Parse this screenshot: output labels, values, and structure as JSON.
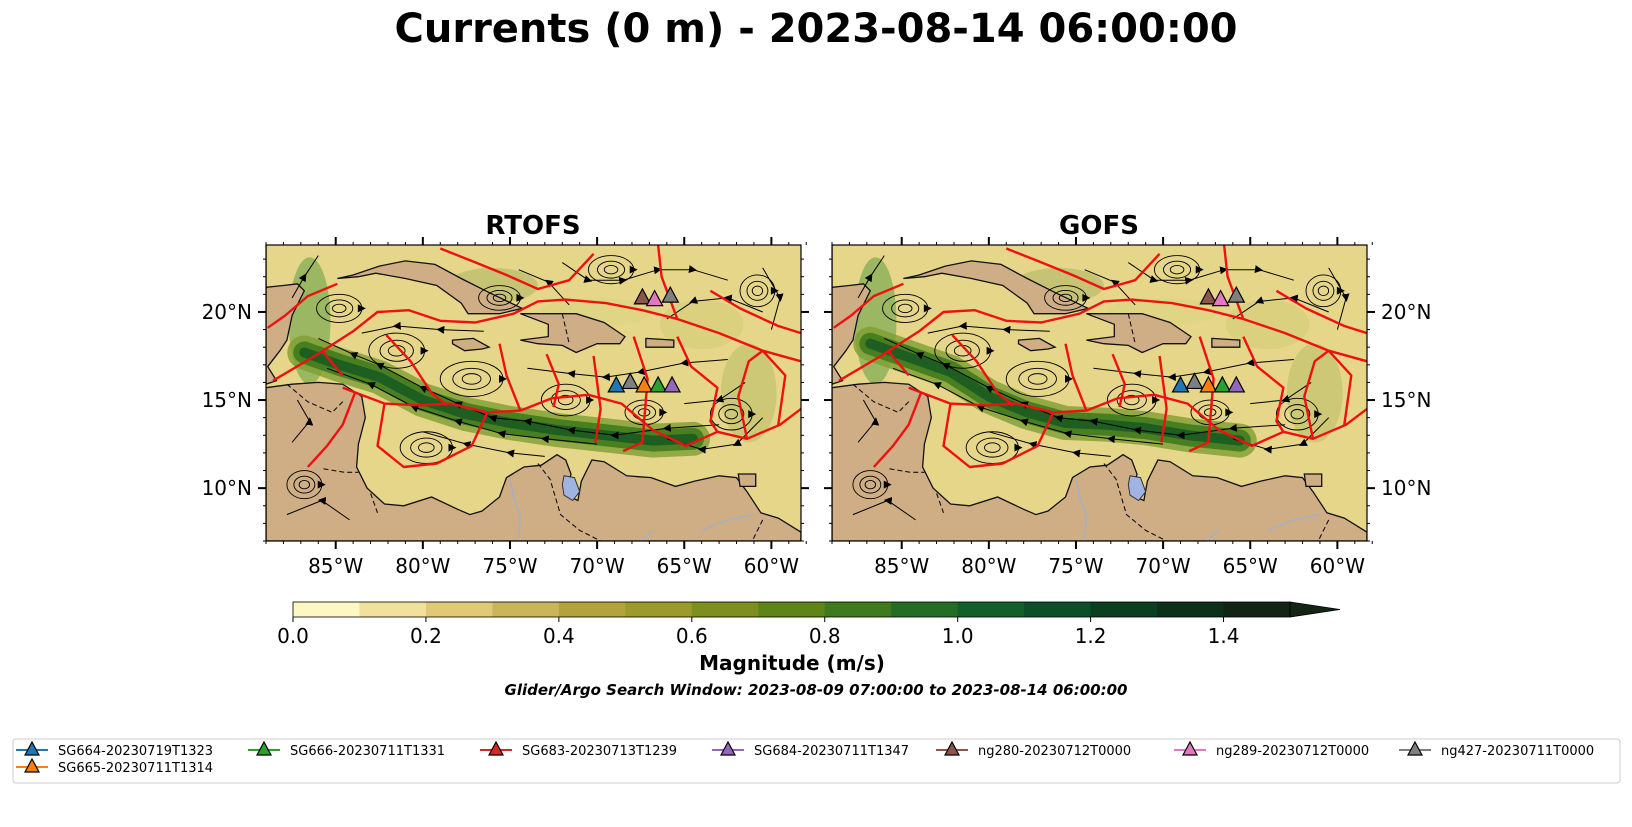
{
  "figure": {
    "title": "Currents (0 m) - 2023-08-14 06:00:00",
    "search_window": "Glider/Argo Search Window: 2023-08-09 07:00:00 to 2023-08-14 06:00:00"
  },
  "panels": [
    {
      "title": "RTOFS"
    },
    {
      "title": "GOFS"
    }
  ],
  "axes": {
    "lon_ticks": [
      "85°W",
      "80°W",
      "75°W",
      "70°W",
      "65°W",
      "60°W"
    ],
    "lon_values": [
      -85,
      -80,
      -75,
      -70,
      -65,
      -60
    ],
    "lat_ticks": [
      "20°N",
      "15°N",
      "10°N"
    ],
    "lat_values": [
      20,
      15,
      10
    ],
    "lon_range": [
      -89,
      -58.3
    ],
    "lat_range": [
      7,
      23.8
    ]
  },
  "colorbar": {
    "label": "Magnitude (m/s)",
    "ticks": [
      "0.0",
      "0.2",
      "0.4",
      "0.6",
      "0.8",
      "1.0",
      "1.2",
      "1.4"
    ],
    "range": [
      0,
      1.5
    ],
    "step": 0.1,
    "extend": "max",
    "colors": [
      "#fdf7c4",
      "#f1e19c",
      "#e2c977",
      "#ccb45a",
      "#b4a23d",
      "#9b9a2a",
      "#7e8f1f",
      "#5f8418",
      "#3f7a1e",
      "#236d25",
      "#125f2a",
      "#0c4f26",
      "#0a3f20",
      "#0c301a",
      "#122515"
    ]
  },
  "colors": {
    "land": "#cfae86",
    "lake": "#9fb4e0",
    "river": "#a9b0bd",
    "eez": "#ee1111",
    "border": "#111111",
    "ocean_low": "#e6d68a",
    "ocean_high": "#2f7a2a"
  },
  "legend": {
    "location": "bottom",
    "entries": [
      {
        "label": "SG664-20230719T1323",
        "color": "#1f77b4"
      },
      {
        "label": "SG665-20230711T1314",
        "color": "#ff7f0e"
      },
      {
        "label": "SG666-20230711T1331",
        "color": "#2ca02c"
      },
      {
        "label": "SG683-20230713T1239",
        "color": "#d62728"
      },
      {
        "label": "SG684-20230711T1347",
        "color": "#9467bd"
      },
      {
        "label": "ng280-20230712T0000",
        "color": "#8c564b"
      },
      {
        "label": "ng289-20230712T0000",
        "color": "#e377c2"
      },
      {
        "label": "ng427-20230711T0000",
        "color": "#7f7f7f"
      }
    ]
  },
  "markers": {
    "south_group": [
      {
        "lon": -68.9,
        "lat": 15.8,
        "color": "#1f77b4"
      },
      {
        "lon": -68.1,
        "lat": 16.0,
        "color": "#7f7f7f"
      },
      {
        "lon": -67.3,
        "lat": 15.8,
        "color": "#ff7f0e"
      },
      {
        "lon": -66.5,
        "lat": 15.8,
        "color": "#2ca02c"
      },
      {
        "lon": -65.7,
        "lat": 15.8,
        "color": "#9467bd"
      }
    ],
    "north_group": [
      {
        "lon": -67.4,
        "lat": 20.8,
        "color": "#8c564b"
      },
      {
        "lon": -66.7,
        "lat": 20.7,
        "color": "#e377c2"
      },
      {
        "lon": -65.8,
        "lat": 20.9,
        "color": "#7f7f7f"
      }
    ]
  }
}
